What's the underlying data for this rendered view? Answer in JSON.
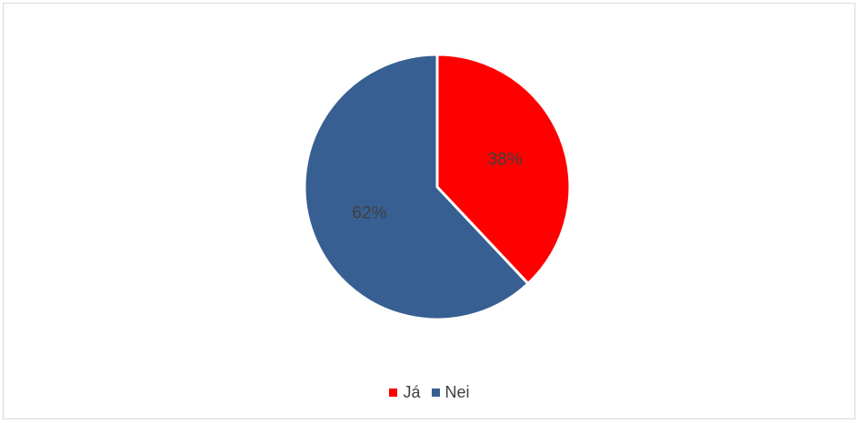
{
  "chart_data": {
    "type": "pie",
    "title": "",
    "slices": [
      {
        "label": "Já",
        "value": 38,
        "display": "38%",
        "color": "#ff0000"
      },
      {
        "label": "Nei",
        "value": 62,
        "display": "62%",
        "color": "#375f91"
      }
    ],
    "legend_position": "bottom"
  }
}
